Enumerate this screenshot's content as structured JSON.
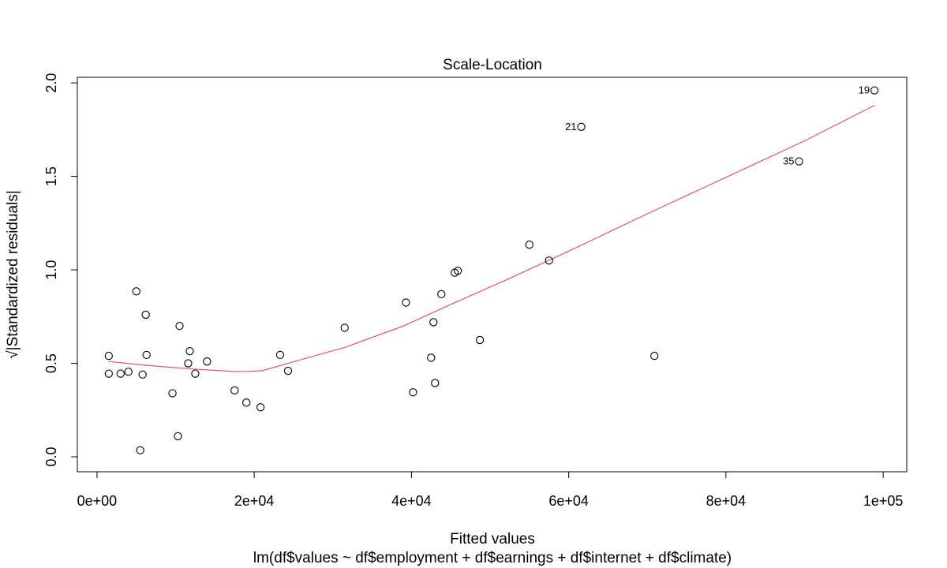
{
  "chart_data": {
    "type": "scatter",
    "title": "Scale-Location",
    "xlabel": "Fitted values",
    "sublabel": "lm(df$values ~ df$employment + df$earnings + df$internet + df$climate)",
    "ylabel": "√|Standardized residuals|",
    "xlim": [
      -2500,
      103000
    ],
    "ylim": [
      -0.08,
      2.03
    ],
    "xticks": [
      0,
      20000,
      40000,
      60000,
      80000,
      100000
    ],
    "xtick_labels": [
      "0e+00",
      "2e+04",
      "4e+04",
      "6e+04",
      "8e+04",
      "1e+05"
    ],
    "yticks": [
      0.0,
      0.5,
      1.0,
      1.5,
      2.0
    ],
    "ytick_labels": [
      "0.0",
      "0.5",
      "1.0",
      "1.5",
      "2.0"
    ],
    "grid": false,
    "points": [
      {
        "x": 1500,
        "y": 0.54
      },
      {
        "x": 1500,
        "y": 0.445
      },
      {
        "x": 3000,
        "y": 0.445
      },
      {
        "x": 4000,
        "y": 0.455
      },
      {
        "x": 5000,
        "y": 0.885
      },
      {
        "x": 5500,
        "y": 0.035
      },
      {
        "x": 5800,
        "y": 0.44
      },
      {
        "x": 6200,
        "y": 0.76
      },
      {
        "x": 6300,
        "y": 0.545
      },
      {
        "x": 9600,
        "y": 0.34
      },
      {
        "x": 10300,
        "y": 0.11
      },
      {
        "x": 10500,
        "y": 0.7
      },
      {
        "x": 11600,
        "y": 0.5
      },
      {
        "x": 11800,
        "y": 0.565
      },
      {
        "x": 12500,
        "y": 0.445
      },
      {
        "x": 14000,
        "y": 0.51
      },
      {
        "x": 17500,
        "y": 0.355
      },
      {
        "x": 19000,
        "y": 0.29
      },
      {
        "x": 20800,
        "y": 0.265
      },
      {
        "x": 23300,
        "y": 0.545
      },
      {
        "x": 24300,
        "y": 0.46
      },
      {
        "x": 31500,
        "y": 0.69
      },
      {
        "x": 39300,
        "y": 0.825
      },
      {
        "x": 40200,
        "y": 0.345
      },
      {
        "x": 42500,
        "y": 0.53
      },
      {
        "x": 42800,
        "y": 0.72
      },
      {
        "x": 43000,
        "y": 0.395
      },
      {
        "x": 43800,
        "y": 0.87
      },
      {
        "x": 45500,
        "y": 0.985
      },
      {
        "x": 45900,
        "y": 0.995
      },
      {
        "x": 48700,
        "y": 0.625
      },
      {
        "x": 55000,
        "y": 1.135
      },
      {
        "x": 57500,
        "y": 1.05
      },
      {
        "x": 61600,
        "y": 1.765,
        "label": "21"
      },
      {
        "x": 70900,
        "y": 0.54
      },
      {
        "x": 89300,
        "y": 1.58,
        "label": "35"
      },
      {
        "x": 98900,
        "y": 1.96,
        "label": "19"
      }
    ],
    "smooth_line": {
      "color": "#DF536B",
      "x": [
        1500,
        6000,
        12000,
        18000,
        21000,
        26000,
        31500,
        39000,
        45000,
        52000,
        60000,
        70000,
        80000,
        90000,
        98900
      ],
      "y": [
        0.51,
        0.49,
        0.47,
        0.455,
        0.46,
        0.52,
        0.585,
        0.7,
        0.815,
        0.945,
        1.1,
        1.3,
        1.495,
        1.69,
        1.88
      ]
    }
  }
}
